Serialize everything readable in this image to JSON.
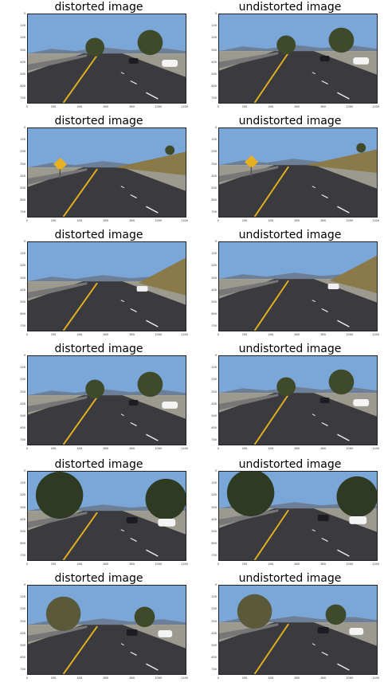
{
  "figure": {
    "rows": [
      {
        "left_title": "distorted image",
        "right_title": "undistorted image",
        "scene": "clear-road"
      },
      {
        "left_title": "distorted image",
        "right_title": "undistorted image",
        "scene": "deer-sign"
      },
      {
        "left_title": "distorted image",
        "right_title": "undistorted image",
        "scene": "hill-car"
      },
      {
        "left_title": "distorted image",
        "right_title": "undistorted image",
        "scene": "trees-cars"
      },
      {
        "left_title": "distorted image",
        "right_title": "undistorted image",
        "scene": "tree-shade"
      },
      {
        "left_title": "distorted image",
        "right_title": "undistorted image",
        "scene": "tree-right"
      }
    ],
    "y_ticks": [
      "0",
      "100",
      "200",
      "300",
      "400",
      "500",
      "600",
      "700"
    ],
    "x_ticks": [
      "0",
      "200",
      "400",
      "600",
      "800",
      "1000",
      "1200"
    ],
    "colors": {
      "sky": "#7aa6d8",
      "road": "#3a3a3f",
      "lane_yellow": "#e0b020",
      "tree": "#3f4a2a",
      "grass": "#8a7a4a"
    }
  }
}
